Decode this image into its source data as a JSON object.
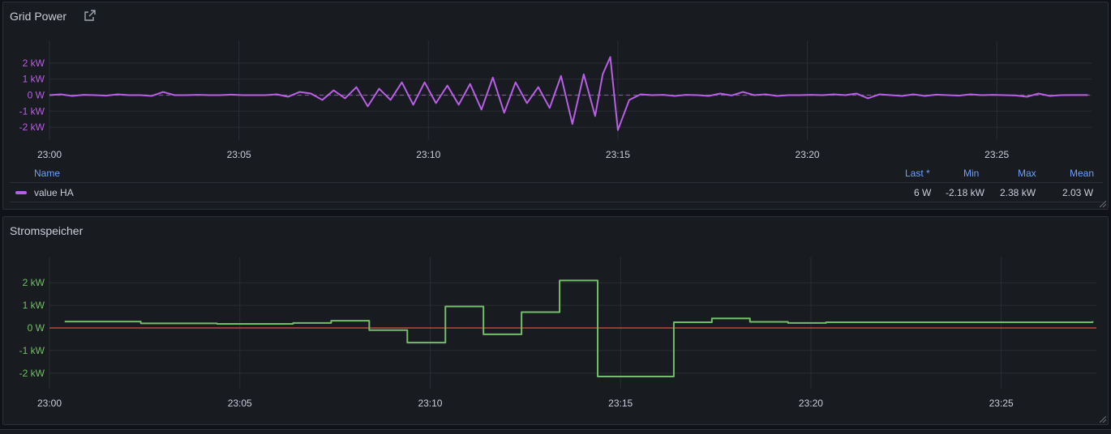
{
  "colors": {
    "grid_series": "#b85fe6",
    "storage_series": "#73bf69",
    "zero_line": "#e24d42",
    "legend_header": "#6e9fff"
  },
  "panel1": {
    "title": "Grid Power",
    "link_icon": "external-link-icon",
    "legend": {
      "headers": {
        "name": "Name",
        "last": "Last *",
        "min": "Min",
        "max": "Max",
        "mean": "Mean"
      },
      "row": {
        "name": "value HA",
        "last": "6 W",
        "min": "-2.18 kW",
        "max": "2.38 kW",
        "mean": "2.03 W"
      }
    }
  },
  "panel2": {
    "title": "Stromspeicher"
  },
  "chart_data": [
    {
      "type": "line",
      "title": "Grid Power",
      "x_tick_labels": [
        "23:00",
        "23:05",
        "23:10",
        "23:15",
        "23:20",
        "23:25"
      ],
      "y_tick_labels": [
        "2 kW",
        "1 kW",
        "0 W",
        "-1 kW",
        "-2 kW"
      ],
      "ylim": [
        -2.4,
        2.4
      ],
      "xlim_minutes": [
        0,
        27.5
      ],
      "grid": true,
      "zero_line": "dashed",
      "series": [
        {
          "name": "value HA",
          "x_minutes": [
            0,
            0.3,
            0.6,
            0.9,
            1.2,
            1.5,
            1.8,
            2.1,
            2.4,
            2.7,
            3.0,
            3.3,
            3.6,
            3.9,
            4.2,
            4.5,
            4.8,
            5.1,
            5.4,
            5.7,
            6.0,
            6.3,
            6.6,
            6.9,
            7.2,
            7.5,
            7.8,
            8.1,
            8.4,
            8.7,
            9.0,
            9.3,
            9.6,
            9.9,
            10.2,
            10.5,
            10.8,
            11.1,
            11.4,
            11.7,
            12.0,
            12.3,
            12.6,
            12.9,
            13.2,
            13.5,
            13.8,
            14.1,
            14.4,
            14.6,
            14.8,
            15.0,
            15.3,
            15.6,
            15.9,
            16.2,
            16.5,
            16.8,
            17.1,
            17.4,
            17.7,
            18.0,
            18.3,
            18.6,
            18.9,
            19.2,
            19.5,
            19.8,
            20.1,
            20.4,
            20.7,
            21.0,
            21.3,
            21.6,
            21.9,
            22.2,
            22.5,
            22.8,
            23.1,
            23.4,
            23.7,
            24.0,
            24.3,
            24.6,
            24.9,
            25.2,
            25.5,
            25.8,
            26.1,
            26.4,
            26.7,
            27.0,
            27.4
          ],
          "values_kw": [
            0,
            0.05,
            -0.05,
            0.02,
            0,
            -0.03,
            0.05,
            0,
            0,
            -0.05,
            0.2,
            0,
            0,
            0.02,
            0,
            0,
            0.03,
            0,
            0,
            0,
            0.05,
            -0.1,
            0.2,
            0.1,
            -0.3,
            0.3,
            -0.2,
            0.5,
            -0.7,
            0.4,
            -0.3,
            0.8,
            -0.6,
            0.8,
            -0.5,
            0.6,
            -0.6,
            0.7,
            -0.9,
            1.1,
            -1.1,
            0.8,
            -0.5,
            0.5,
            -0.8,
            1.2,
            -1.8,
            1.3,
            -1.3,
            1.3,
            2.38,
            -2.18,
            -0.3,
            0.05,
            0,
            0.02,
            -0.05,
            0.02,
            0,
            -0.05,
            0.1,
            -0.02,
            0.2,
            0,
            0.05,
            -0.05,
            0,
            0,
            0.02,
            0,
            0.05,
            0,
            0.1,
            -0.2,
            0.05,
            0,
            -0.05,
            0.05,
            -0.05,
            0.03,
            0,
            -0.03,
            0.05,
            0,
            0.02,
            0,
            -0.02,
            -0.1,
            0.1,
            -0.05,
            0,
            0.006,
            0.006
          ]
        }
      ]
    },
    {
      "type": "line",
      "title": "Stromspeicher",
      "x_tick_labels": [
        "23:00",
        "23:05",
        "23:10",
        "23:15",
        "23:20",
        "23:25"
      ],
      "y_tick_labels": [
        "2 kW",
        "1 kW",
        "0 W",
        "-1 kW",
        "-2 kW"
      ],
      "ylim": [
        -2.4,
        2.4
      ],
      "xlim_minutes": [
        0,
        27.5
      ],
      "grid": true,
      "step": true,
      "zero_line": "solid",
      "series": [
        {
          "x_minutes": [
            0.4,
            2.4,
            4.4,
            6.4,
            7.4,
            8.4,
            9.4,
            10.4,
            11.4,
            12.4,
            13.4,
            14.4,
            16.4,
            17.4,
            18.4,
            19.4,
            20.4,
            27.4
          ],
          "values_kw": [
            0.28,
            0.2,
            0.18,
            0.22,
            0.32,
            -0.1,
            -0.65,
            0.95,
            -0.28,
            0.7,
            2.1,
            -2.15,
            0.25,
            0.42,
            0.27,
            0.22,
            0.25,
            0.3
          ]
        }
      ]
    }
  ]
}
